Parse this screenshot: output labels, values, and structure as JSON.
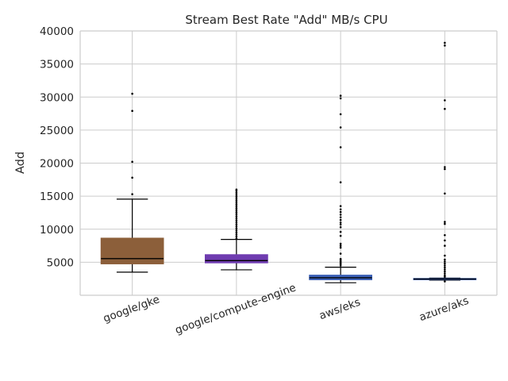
{
  "chart_data": {
    "type": "box",
    "title": "Stream Best Rate \"Add\" MB/s CPU",
    "ylabel": "Add",
    "xlabel": "",
    "ylim": [
      0,
      40000
    ],
    "yticks": [
      5000,
      10000,
      15000,
      20000,
      25000,
      30000,
      35000,
      40000
    ],
    "grid": true,
    "categories": [
      "google/gke",
      "google/compute-engine",
      "aws/eks",
      "azure/aks"
    ],
    "boxes": [
      {
        "category": "google/gke",
        "color": "#8c5f3a",
        "whisker_low": 3500,
        "q1": 4750,
        "median": 5550,
        "q3": 8650,
        "whisker_high": 14550,
        "outliers": [
          15300,
          17800,
          20200,
          27900,
          30500
        ]
      },
      {
        "category": "google/compute-engine",
        "color": "#6f3cb0",
        "whisker_low": 3850,
        "q1": 4900,
        "median": 5250,
        "q3": 6150,
        "whisker_high": 8450,
        "outliers": [
          8600,
          8900,
          9200,
          9500,
          9800,
          10100,
          10400,
          10700,
          11000,
          11300,
          11600,
          11900,
          12200,
          12500,
          12800,
          13100,
          13400,
          13700,
          14000,
          14300,
          14600,
          14900,
          15200,
          15500,
          15800,
          16000
        ]
      },
      {
        "category": "aws/eks",
        "color": "#3a5fb5",
        "whisker_low": 1900,
        "q1": 2350,
        "median": 2650,
        "q3": 3050,
        "whisker_high": 4250,
        "outliers": [
          4500,
          4700,
          4900,
          5100,
          5300,
          5500,
          6300,
          7200,
          7500,
          7800,
          9000,
          9600,
          10300,
          10700,
          11000,
          11400,
          11800,
          12200,
          12600,
          13000,
          13500,
          17100,
          22400,
          25400,
          27400,
          29800,
          30200
        ]
      },
      {
        "category": "azure/aks",
        "color": "#3a5fb5",
        "whisker_low": 2300,
        "q1": 2350,
        "median": 2450,
        "q3": 2550,
        "whisker_high": 2600,
        "outliers": [
          2100,
          2800,
          3000,
          3300,
          3600,
          3900,
          4200,
          4500,
          4800,
          5100,
          5400,
          6000,
          7500,
          8300,
          9100,
          10800,
          11100,
          15400,
          19100,
          19400,
          28200,
          29500,
          37800,
          38200
        ]
      }
    ]
  }
}
